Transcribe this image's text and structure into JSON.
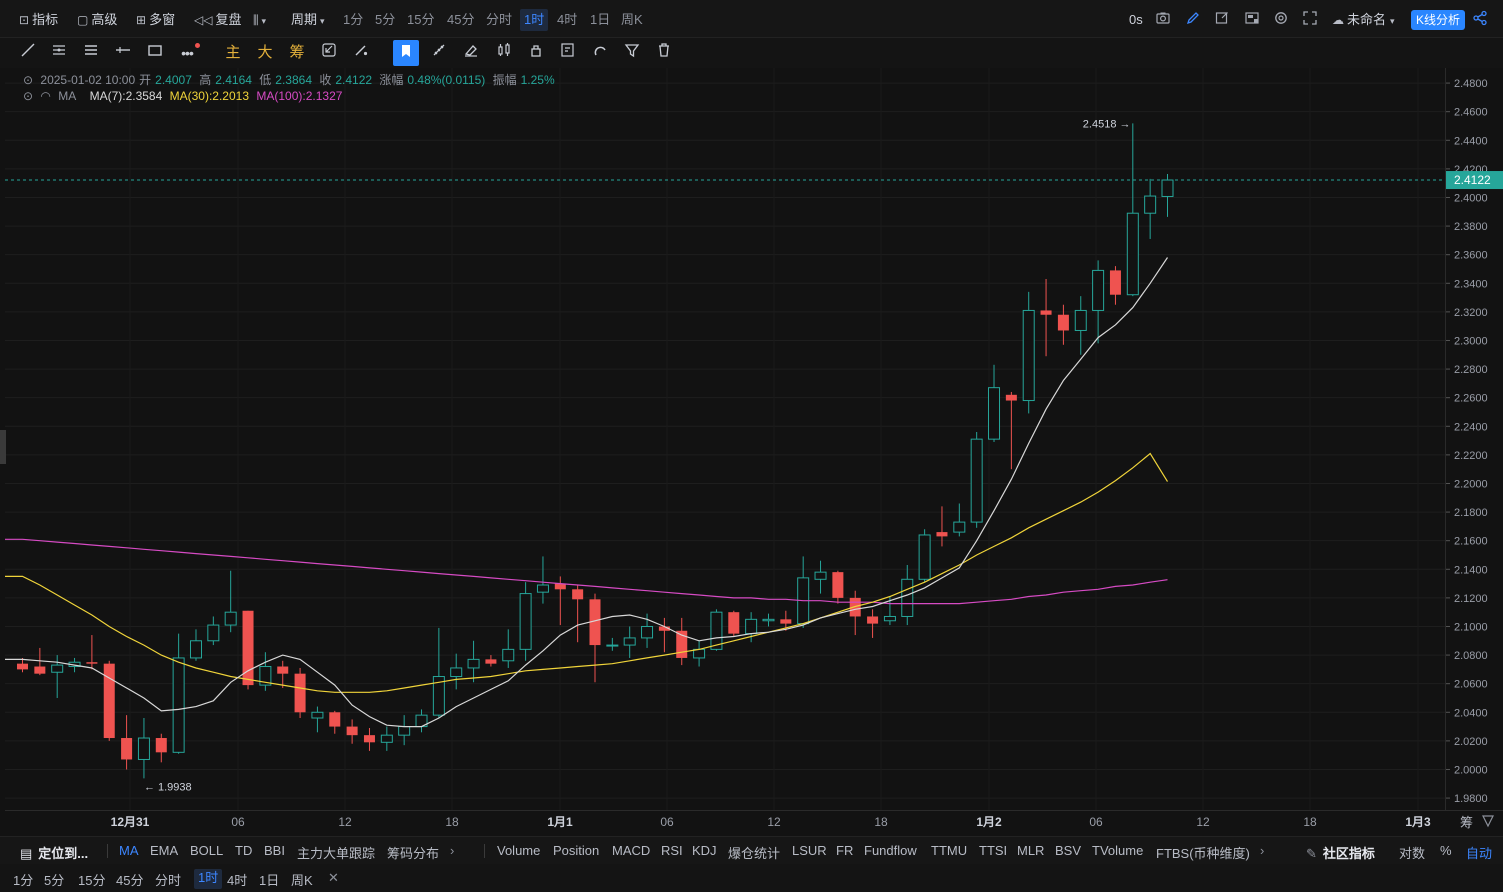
{
  "toolbar": {
    "indicator": "指标",
    "advanced": "高级",
    "multi_window": "多窗",
    "replay": "复盘",
    "period_label": "周期",
    "periods": [
      "1分",
      "5分",
      "15分",
      "45分",
      "分时",
      "1时",
      "4时",
      "1日",
      "周K"
    ],
    "active_period": "1时",
    "countdown": "0s",
    "layout_name": "未命名",
    "kline_analysis": "K线分析"
  },
  "drawbar": {
    "main": "主",
    "big": "大",
    "chip": "筹"
  },
  "info": {
    "datetime": "2025-01-02 10:00",
    "open_label": "开",
    "open": "2.4007",
    "high_label": "高",
    "high": "2.4164",
    "low_label": "低",
    "low": "2.3864",
    "close_label": "收",
    "close": "2.4122",
    "change_label": "涨幅",
    "change": "0.48%(0.0115)",
    "amplitude_label": "振幅",
    "amplitude": "1.25%",
    "ma_label": "MA",
    "ma7": "MA(7):2.3584",
    "ma30": "MA(30):2.2013",
    "ma100": "MA(100):2.1327"
  },
  "colors": {
    "up": "#26a69a",
    "down": "#ef5350",
    "ma7": "#d8d8d8",
    "ma30": "#f0d43a",
    "ma100": "#d64bc4",
    "accent": "#2a86ff",
    "last_price": "#26a69a"
  },
  "chart_data": {
    "type": "candlestick",
    "y_axis_ticks": [
      "2.4800",
      "2.4600",
      "2.4400",
      "2.4200",
      "2.4000",
      "2.3800",
      "2.3600",
      "2.3400",
      "2.3200",
      "2.3000",
      "2.2800",
      "2.2600",
      "2.2400",
      "2.2200",
      "2.2000",
      "2.1800",
      "2.1600",
      "2.1400",
      "2.1200",
      "2.1000",
      "2.0800",
      "2.0600",
      "2.0400",
      "2.0200",
      "2.0000",
      "1.9800"
    ],
    "ylim": [
      1.97,
      2.485
    ],
    "x_axis_ticks": [
      "12月31",
      "06",
      "12",
      "18",
      "1月1",
      "06",
      "12",
      "18",
      "1月2",
      "06",
      "12",
      "18",
      "1月3"
    ],
    "last_price": "2.4122",
    "max_label": "2.4518",
    "min_label": "1.9938",
    "candles": [
      [
        2.074,
        2.07,
        2.078,
        2.068
      ],
      [
        2.072,
        2.067,
        2.085,
        2.066
      ],
      [
        2.068,
        2.073,
        2.08,
        2.05
      ],
      [
        2.072,
        2.075,
        2.078,
        2.068
      ],
      [
        2.075,
        2.074,
        2.094,
        2.07
      ],
      [
        2.074,
        2.022,
        2.076,
        2.02
      ],
      [
        2.022,
        2.007,
        2.038,
        2.0
      ],
      [
        2.007,
        2.022,
        2.036,
        1.9938
      ],
      [
        2.022,
        2.012,
        2.025,
        2.005
      ],
      [
        2.012,
        2.078,
        2.095,
        2.011
      ],
      [
        2.078,
        2.09,
        2.098,
        2.076
      ],
      [
        2.09,
        2.101,
        2.107,
        2.087
      ],
      [
        2.101,
        2.11,
        2.139,
        2.096
      ],
      [
        2.111,
        2.059,
        2.111,
        2.056
      ],
      [
        2.059,
        2.072,
        2.082,
        2.055
      ],
      [
        2.072,
        2.067,
        2.076,
        2.057
      ],
      [
        2.067,
        2.04,
        2.071,
        2.036
      ],
      [
        2.036,
        2.04,
        2.044,
        2.026
      ],
      [
        2.04,
        2.03,
        2.041,
        2.025
      ],
      [
        2.03,
        2.024,
        2.035,
        2.018
      ],
      [
        2.024,
        2.019,
        2.029,
        2.013
      ],
      [
        2.019,
        2.024,
        2.03,
        2.013
      ],
      [
        2.024,
        2.03,
        2.038,
        2.017
      ],
      [
        2.03,
        2.038,
        2.042,
        2.026
      ],
      [
        2.038,
        2.065,
        2.099,
        2.036
      ],
      [
        2.065,
        2.071,
        2.081,
        2.056
      ],
      [
        2.071,
        2.077,
        2.09,
        2.061
      ],
      [
        2.077,
        2.074,
        2.08,
        2.072
      ],
      [
        2.076,
        2.084,
        2.098,
        2.071
      ],
      [
        2.084,
        2.123,
        2.131,
        2.076
      ],
      [
        2.124,
        2.129,
        2.149,
        2.116
      ],
      [
        2.13,
        2.126,
        2.135,
        2.101
      ],
      [
        2.126,
        2.119,
        2.129,
        2.089
      ],
      [
        2.119,
        2.087,
        2.123,
        2.061
      ],
      [
        2.087,
        2.087,
        2.092,
        2.083
      ],
      [
        2.087,
        2.092,
        2.1,
        2.078
      ],
      [
        2.092,
        2.1,
        2.109,
        2.085
      ],
      [
        2.1,
        2.097,
        2.106,
        2.082
      ],
      [
        2.097,
        2.078,
        2.106,
        2.073
      ],
      [
        2.078,
        2.084,
        2.09,
        2.072
      ],
      [
        2.084,
        2.11,
        2.112,
        2.083
      ],
      [
        2.11,
        2.095,
        2.111,
        2.093
      ],
      [
        2.095,
        2.105,
        2.11,
        2.089
      ],
      [
        2.104,
        2.105,
        2.109,
        2.1
      ],
      [
        2.105,
        2.102,
        2.111,
        2.097
      ],
      [
        2.102,
        2.134,
        2.149,
        2.099
      ],
      [
        2.133,
        2.138,
        2.146,
        2.123
      ],
      [
        2.138,
        2.12,
        2.139,
        2.116
      ],
      [
        2.12,
        2.107,
        2.125,
        2.094
      ],
      [
        2.107,
        2.102,
        2.112,
        2.092
      ],
      [
        2.104,
        2.107,
        2.121,
        2.101
      ],
      [
        2.107,
        2.133,
        2.143,
        2.101
      ],
      [
        2.133,
        2.164,
        2.168,
        2.131
      ],
      [
        2.166,
        2.163,
        2.184,
        2.156
      ],
      [
        2.166,
        2.173,
        2.186,
        2.163
      ],
      [
        2.173,
        2.231,
        2.236,
        2.169
      ],
      [
        2.231,
        2.267,
        2.283,
        2.229
      ],
      [
        2.262,
        2.258,
        2.264,
        2.21
      ],
      [
        2.258,
        2.321,
        2.334,
        2.249
      ],
      [
        2.321,
        2.318,
        2.343,
        2.289
      ],
      [
        2.318,
        2.307,
        2.325,
        2.297
      ],
      [
        2.307,
        2.321,
        2.331,
        2.29
      ],
      [
        2.321,
        2.349,
        2.356,
        2.298
      ],
      [
        2.349,
        2.332,
        2.352,
        2.325
      ],
      [
        2.332,
        2.389,
        2.4518,
        2.331
      ],
      [
        2.389,
        2.401,
        2.413,
        2.371
      ],
      [
        2.4007,
        2.4122,
        2.4164,
        2.3864
      ]
    ],
    "ma7": [
      2.077,
      2.076,
      2.075,
      2.073,
      2.071,
      2.064,
      2.057,
      2.05,
      2.041,
      2.042,
      2.044,
      2.048,
      2.061,
      2.069,
      2.075,
      2.08,
      2.077,
      2.068,
      2.059,
      2.045,
      2.037,
      2.031,
      2.03,
      2.03,
      2.036,
      2.044,
      2.05,
      2.056,
      2.062,
      2.073,
      2.083,
      2.094,
      2.101,
      2.104,
      2.107,
      2.108,
      2.105,
      2.1,
      2.094,
      2.09,
      2.092,
      2.093,
      2.095,
      2.096,
      2.098,
      2.101,
      2.106,
      2.109,
      2.112,
      2.114,
      2.118,
      2.122,
      2.127,
      2.134,
      2.141,
      2.16,
      2.181,
      2.203,
      2.228,
      2.252,
      2.272,
      2.287,
      2.302,
      2.311,
      2.323,
      2.34,
      2.358
    ],
    "ma30": [
      2.135,
      2.129,
      2.122,
      2.115,
      2.108,
      2.1,
      2.093,
      2.087,
      2.08,
      2.075,
      2.071,
      2.068,
      2.065,
      2.063,
      2.061,
      2.059,
      2.057,
      2.055,
      2.054,
      2.054,
      2.054,
      2.055,
      2.057,
      2.059,
      2.061,
      2.063,
      2.064,
      2.065,
      2.067,
      2.069,
      2.07,
      2.071,
      2.072,
      2.073,
      2.074,
      2.076,
      2.078,
      2.08,
      2.082,
      2.084,
      2.087,
      2.09,
      2.093,
      2.096,
      2.099,
      2.102,
      2.106,
      2.11,
      2.114,
      2.117,
      2.121,
      2.126,
      2.131,
      2.137,
      2.143,
      2.15,
      2.156,
      2.162,
      2.169,
      2.175,
      2.181,
      2.187,
      2.194,
      2.202,
      2.211,
      2.221,
      2.2013
    ],
    "ma100": [
      2.161,
      2.16,
      2.159,
      2.158,
      2.157,
      2.156,
      2.155,
      2.154,
      2.153,
      2.152,
      2.151,
      2.15,
      2.149,
      2.148,
      2.147,
      2.146,
      2.145,
      2.144,
      2.143,
      2.142,
      2.141,
      2.14,
      2.139,
      2.138,
      2.137,
      2.136,
      2.135,
      2.134,
      2.133,
      2.132,
      2.131,
      2.13,
      2.129,
      2.128,
      2.127,
      2.126,
      2.125,
      2.124,
      2.123,
      2.122,
      2.121,
      2.12,
      2.12,
      2.119,
      2.119,
      2.118,
      2.118,
      2.117,
      2.117,
      2.117,
      2.116,
      2.116,
      2.116,
      2.116,
      2.116,
      2.117,
      2.118,
      2.119,
      2.121,
      2.122,
      2.124,
      2.125,
      2.126,
      2.128,
      2.129,
      2.131,
      2.1327
    ]
  },
  "indicators": {
    "locate": "定位到...",
    "main_list": [
      "MA",
      "EMA",
      "BOLL",
      "TD",
      "BBI",
      "主力大单跟踪",
      "筹码分布"
    ],
    "active_main": "MA",
    "sub_list": [
      "Volume",
      "Position",
      "MACD",
      "RSI",
      "KDJ",
      "爆仓统计",
      "LSUR",
      "FR",
      "Fundflow",
      "TTMU",
      "TTSI",
      "MLR",
      "BSV",
      "TVolume",
      "FTBS(币种维度)"
    ],
    "community": "社区指标",
    "log_label": "对数",
    "percent_label": "%",
    "auto_label": "自动",
    "chip_vertical": "筹"
  },
  "bottom_periods": {
    "items": [
      "1分",
      "5分",
      "15分",
      "45分",
      "分时",
      "1时",
      "4时",
      "1日",
      "周K"
    ],
    "active": "1时",
    "close_symbol": "✕"
  }
}
